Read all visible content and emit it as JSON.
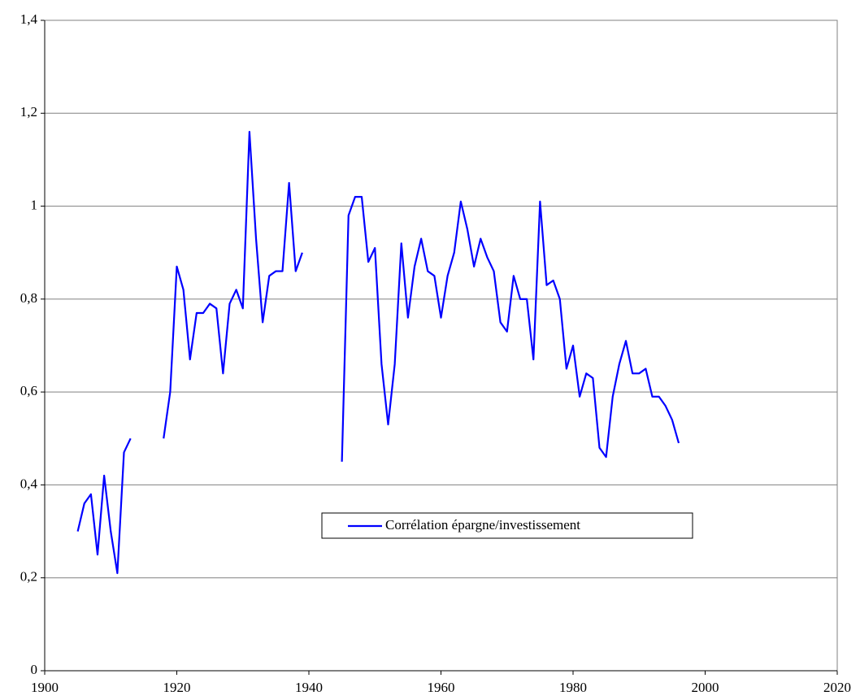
{
  "chart_data": {
    "type": "line",
    "x": [
      1905,
      1906,
      1907,
      1908,
      1909,
      1910,
      1911,
      1912,
      1913,
      1914,
      1915,
      1916,
      1917,
      1918,
      1919,
      1920,
      1921,
      1922,
      1923,
      1924,
      1925,
      1926,
      1927,
      1928,
      1929,
      1930,
      1931,
      1932,
      1933,
      1934,
      1935,
      1936,
      1937,
      1938,
      1939,
      1940,
      1941,
      1942,
      1943,
      1944,
      1945,
      1946,
      1947,
      1948,
      1949,
      1950,
      1951,
      1952,
      1953,
      1954,
      1955,
      1956,
      1957,
      1958,
      1959,
      1960,
      1961,
      1962,
      1963,
      1964,
      1965,
      1966,
      1967,
      1968,
      1969,
      1970,
      1971,
      1972,
      1973,
      1974,
      1975,
      1976,
      1977,
      1978,
      1979,
      1980,
      1981,
      1982,
      1983,
      1984,
      1985,
      1986,
      1987,
      1988,
      1989,
      1990,
      1991,
      1992,
      1993,
      1994,
      1995,
      1996
    ],
    "series": [
      {
        "name": "Corrélation épargne/investissement",
        "color": "#0000ff",
        "values": [
          0.3,
          0.36,
          0.38,
          0.25,
          0.42,
          0.3,
          0.21,
          0.47,
          0.5,
          null,
          null,
          null,
          null,
          0.5,
          0.6,
          0.87,
          0.82,
          0.67,
          0.77,
          0.77,
          0.79,
          0.78,
          0.64,
          0.79,
          0.82,
          0.78,
          1.16,
          0.93,
          0.75,
          0.85,
          0.86,
          0.86,
          1.05,
          0.86,
          0.9,
          null,
          null,
          null,
          null,
          null,
          0.45,
          0.98,
          1.02,
          1.02,
          0.88,
          0.91,
          0.66,
          0.53,
          0.66,
          0.92,
          0.76,
          0.87,
          0.93,
          0.86,
          0.85,
          0.76,
          0.85,
          0.9,
          1.01,
          0.95,
          0.87,
          0.93,
          0.89,
          0.86,
          0.75,
          0.73,
          0.85,
          0.8,
          0.8,
          0.67,
          1.01,
          0.83,
          0.84,
          0.8,
          0.65,
          0.7,
          0.59,
          0.64,
          0.63,
          0.48,
          0.46,
          0.59,
          0.66,
          0.71,
          0.64,
          0.64,
          0.65,
          0.59,
          0.59,
          0.57,
          0.54,
          0.49
        ]
      }
    ],
    "xlim": [
      1900,
      2020
    ],
    "xticks": [
      1900,
      1920,
      1940,
      1960,
      1980,
      2000,
      2020
    ],
    "ylim": [
      0,
      1.4
    ],
    "yticks": [
      0,
      {
        "value": 0.2,
        "label": "0,2"
      },
      {
        "value": 0.4,
        "label": "0,4"
      },
      {
        "value": 0.6,
        "label": "0,6"
      },
      {
        "value": 0.8,
        "label": "0,8"
      },
      1,
      {
        "value": 1.2,
        "label": "1,2"
      },
      {
        "value": 1.4,
        "label": "1,4"
      }
    ],
    "grid": true
  }
}
